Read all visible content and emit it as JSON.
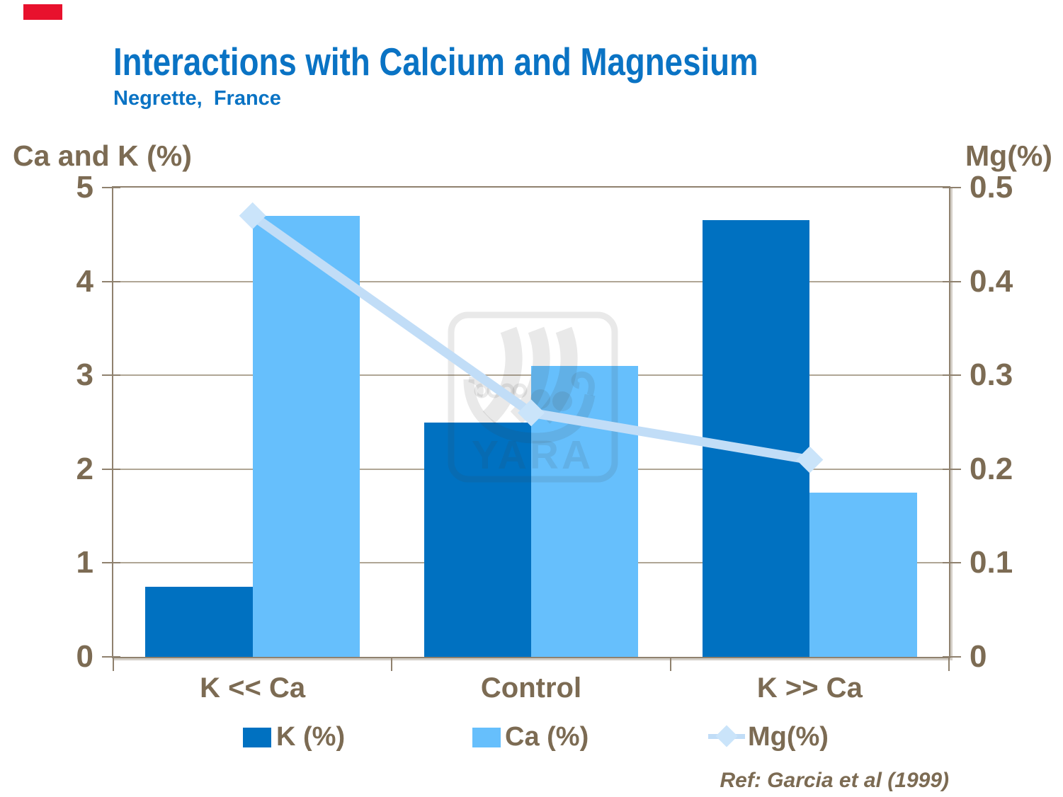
{
  "slide": {
    "logo_block_color": "#E8112D",
    "title": "Interactions with Calcium and Magnesium",
    "subtitle": "Negrette,  France",
    "title_color": "#0A73C4",
    "text_color": "#7C6B53",
    "reference": "Ref: Garcia et al (1999)",
    "watermark_text": "YARA"
  },
  "chart_data": {
    "type": "bar+line",
    "title": "Interactions with Calcium and Magnesium",
    "subtitle": "Negrette,  France",
    "categories": [
      "K << Ca",
      "Control",
      "K >> Ca"
    ],
    "series": [
      {
        "name": "K (%)",
        "type": "bar",
        "axis": "left",
        "color": "#0071C1",
        "values": [
          0.75,
          2.5,
          4.65
        ]
      },
      {
        "name": "Ca (%)",
        "type": "bar",
        "axis": "left",
        "color": "#66BFFC",
        "values": [
          4.7,
          3.1,
          1.75
        ]
      },
      {
        "name": "Mg(%)",
        "type": "line",
        "axis": "right",
        "color": "#C1DDF7",
        "marker": "diamond",
        "marker_color": "#CAE4FA",
        "values": [
          0.47,
          0.26,
          0.21
        ]
      }
    ],
    "left_axis": {
      "label": "Ca and K (%)",
      "ticks": [
        "5",
        "4",
        "3",
        "2",
        "1",
        "0"
      ],
      "range": [
        0,
        5
      ]
    },
    "right_axis": {
      "label": "Mg(%)",
      "ticks": [
        "0.5",
        "0.4",
        "0.3",
        "0.2",
        "0.1",
        "0"
      ],
      "range": [
        0,
        0.5
      ]
    },
    "grid": "horizontal",
    "legend_position": "bottom"
  }
}
